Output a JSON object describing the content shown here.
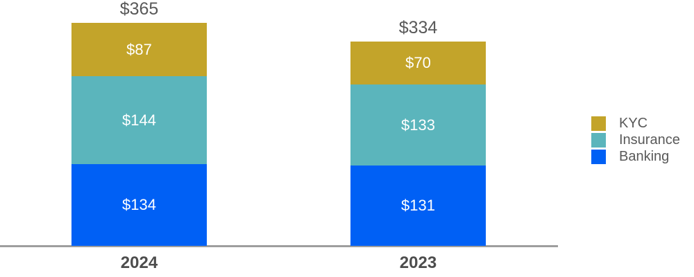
{
  "chart_data": {
    "type": "bar",
    "stacked": true,
    "orientation": "vertical",
    "grid": false,
    "y_axis_visible": false,
    "x_axis_line_color": "#9e9e9e",
    "value_prefix": "$",
    "categories": [
      "2024",
      "2023"
    ],
    "series": [
      {
        "name": "KYC",
        "color": "#c3a42a",
        "values": [
          87,
          70
        ]
      },
      {
        "name": "Insurance",
        "color": "#5bb5bc",
        "values": [
          144,
          133
        ]
      },
      {
        "name": "Banking",
        "color": "#0060f5",
        "values": [
          134,
          131
        ]
      }
    ],
    "totals": [
      365,
      334
    ],
    "ylim": [
      0,
      365
    ],
    "bars": [
      {
        "category": "2024",
        "total_label": "$365",
        "segments": [
          {
            "name": "KYC",
            "value": 87,
            "label": "$87"
          },
          {
            "name": "Insurance",
            "value": 144,
            "label": "$144"
          },
          {
            "name": "Banking",
            "value": 134,
            "label": "$134"
          }
        ]
      },
      {
        "category": "2023",
        "total_label": "$334",
        "segments": [
          {
            "name": "KYC",
            "value": 70,
            "label": "$70"
          },
          {
            "name": "Insurance",
            "value": 133,
            "label": "$133"
          },
          {
            "name": "Banking",
            "value": 131,
            "label": "$131"
          }
        ]
      }
    ],
    "legend": {
      "position": "right",
      "items": [
        {
          "label": "KYC",
          "color": "#c3a42a"
        },
        {
          "label": "Insurance",
          "color": "#5bb5bc"
        },
        {
          "label": "Banking",
          "color": "#0060f5"
        }
      ]
    },
    "text_colors": {
      "total_label": "#595959",
      "segment_label": "#ffffff",
      "category_label": "#4d4d4d",
      "legend_label": "#595959"
    }
  }
}
